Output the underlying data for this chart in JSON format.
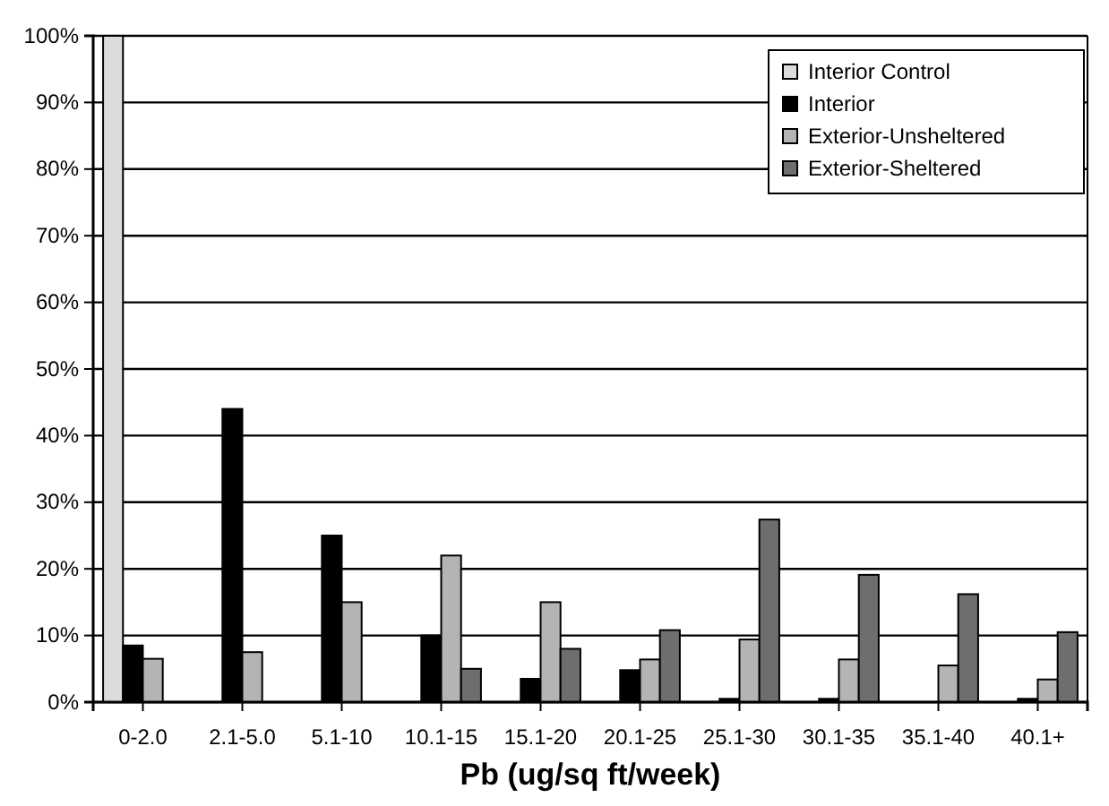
{
  "chart_data": {
    "type": "bar",
    "xlabel": "Pb (ug/sq ft/week)",
    "categories": [
      "0-2.0",
      "2.1-5.0",
      "5.1-10",
      "10.1-15",
      "15.1-20",
      "20.1-25",
      "25.1-30",
      "30.1-35",
      "35.1-40",
      "40.1+"
    ],
    "series": [
      {
        "name": "Interior Control",
        "color": "#dcdcdc",
        "values": [
          100,
          0,
          0,
          0,
          0,
          0,
          0,
          0,
          0,
          0
        ]
      },
      {
        "name": "Interior",
        "color": "#000000",
        "values": [
          8.5,
          44,
          25,
          10,
          3.5,
          4.8,
          0.5,
          0.5,
          0,
          0.5
        ]
      },
      {
        "name": "Exterior-Unsheltered",
        "color": "#b4b4b4",
        "values": [
          6.5,
          7.5,
          15,
          22,
          15,
          6.4,
          9.4,
          6.4,
          5.5,
          3.4
        ]
      },
      {
        "name": "Exterior-Sheltered",
        "color": "#6e6e6e",
        "values": [
          0,
          0,
          0,
          5,
          8,
          10.8,
          27.4,
          19.1,
          16.2,
          10.5
        ]
      }
    ],
    "ylim": [
      0,
      100
    ],
    "yticks": [
      {
        "value": 0,
        "label": "0%"
      },
      {
        "value": 10,
        "label": "10%"
      },
      {
        "value": 20,
        "label": "20%"
      },
      {
        "value": 30,
        "label": "30%"
      },
      {
        "value": 40,
        "label": "40%"
      },
      {
        "value": 50,
        "label": "50%"
      },
      {
        "value": 60,
        "label": "60%"
      },
      {
        "value": 70,
        "label": "70%"
      },
      {
        "value": 80,
        "label": "80%"
      },
      {
        "value": 90,
        "label": "90%"
      },
      {
        "value": 100,
        "label": "100%"
      }
    ],
    "grid": "y",
    "legend": "top right"
  }
}
